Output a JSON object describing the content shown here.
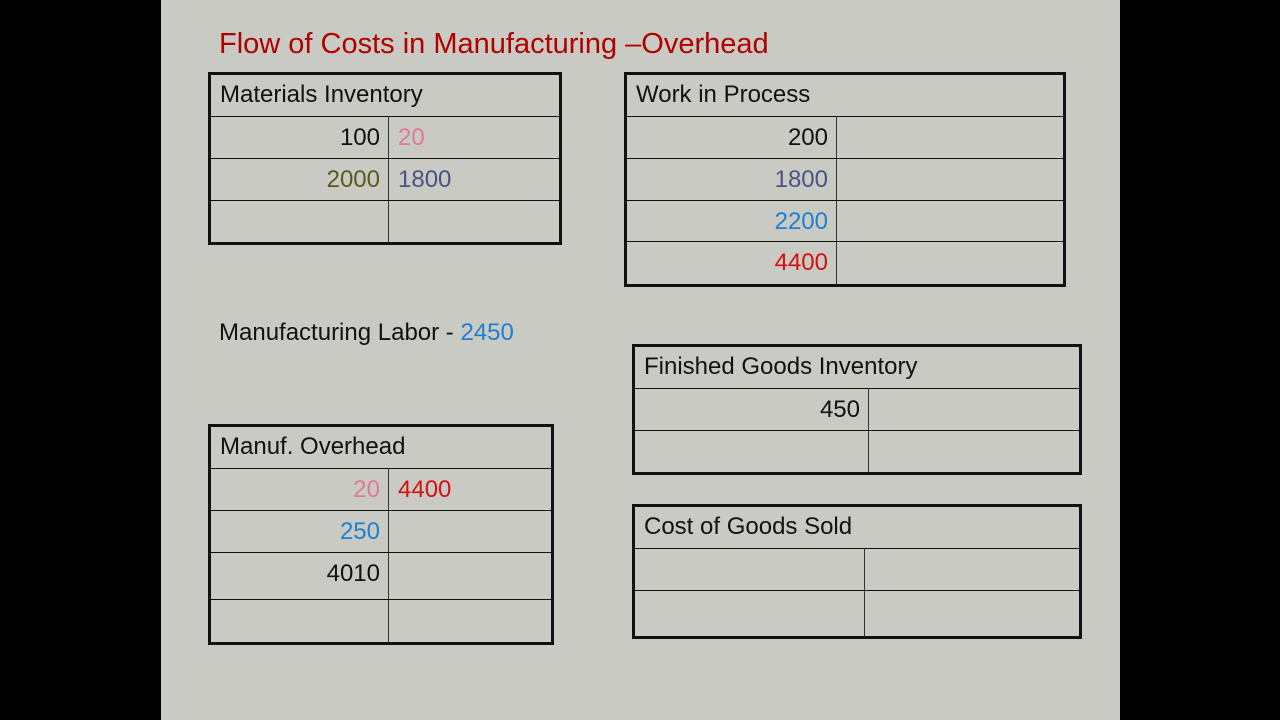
{
  "title": "Flow of Costs in Manufacturing –Overhead",
  "colors": {
    "black": "#111111",
    "pink": "#e0799a",
    "olive": "#5a5a1e",
    "slate": "#4c5282",
    "blue": "#1e7fd0",
    "red": "#d41010",
    "title": "#b00000"
  },
  "labor": {
    "label": "Manufacturing Labor - ",
    "value": "2450",
    "value_color": "blue"
  },
  "accounts": [
    {
      "id": "materials-inventory",
      "name": "Materials Inventory",
      "rows": [
        {
          "debit": "100",
          "debit_color": "black",
          "credit": "20",
          "credit_color": "pink"
        },
        {
          "debit": "2000",
          "debit_color": "olive",
          "credit": "1800",
          "credit_color": "slate"
        },
        {
          "debit": "",
          "credit": ""
        }
      ]
    },
    {
      "id": "work-in-process",
      "name": "Work in Process",
      "rows": [
        {
          "debit": "200",
          "debit_color": "black",
          "credit": ""
        },
        {
          "debit": "1800",
          "debit_color": "slate",
          "credit": ""
        },
        {
          "debit": "2200",
          "debit_color": "blue",
          "credit": ""
        },
        {
          "debit": "4400",
          "debit_color": "red",
          "credit": ""
        }
      ]
    },
    {
      "id": "finished-goods-inventory",
      "name": "Finished Goods Inventory",
      "rows": [
        {
          "debit": "450",
          "debit_color": "black",
          "credit": ""
        },
        {
          "debit": "",
          "credit": ""
        }
      ]
    },
    {
      "id": "manuf-overhead",
      "name": "Manuf. Overhead",
      "rows": [
        {
          "debit": "20",
          "debit_color": "pink",
          "credit": "4400",
          "credit_color": "red"
        },
        {
          "debit": "250",
          "debit_color": "blue",
          "credit": ""
        },
        {
          "debit": "4010",
          "debit_color": "black",
          "credit": ""
        },
        {
          "debit": "",
          "credit": ""
        }
      ]
    },
    {
      "id": "cost-of-goods-sold",
      "name": "Cost of Goods Sold",
      "rows": [
        {
          "debit": "",
          "credit": ""
        },
        {
          "debit": "",
          "credit": ""
        }
      ]
    }
  ]
}
